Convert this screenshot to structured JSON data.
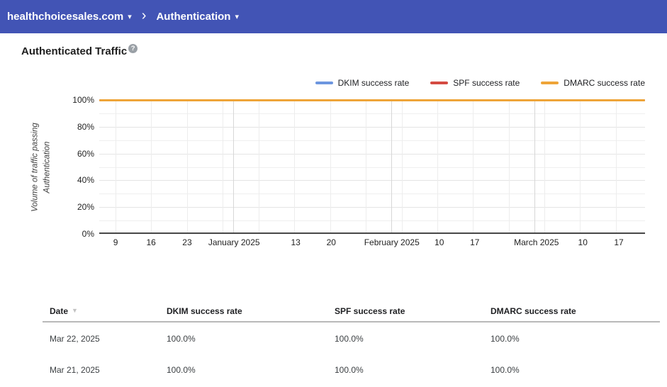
{
  "header": {
    "domain": "healthchoicesales.com",
    "section": "Authentication",
    "caret": "▾",
    "separator": "›"
  },
  "page": {
    "title": "Authenticated Traffic",
    "help_glyph": "?"
  },
  "colors": {
    "header_bg": "#4254B5",
    "dkim_blue": "#6D96DF",
    "spf_red": "#D44B42",
    "dmarc_orange": "#EEA438"
  },
  "chart_data": {
    "type": "line",
    "title": "Authenticated Traffic",
    "ylabel": "Volume of traffic passing Authentication",
    "ylabel_lines": [
      "Volume of traffic passing",
      "Authentication"
    ],
    "ylim": [
      0,
      100
    ],
    "y_unit": "%",
    "grid": true,
    "legend_position": "top-right",
    "y_ticks": [
      {
        "value": 100,
        "label": "100%"
      },
      {
        "value": 80,
        "label": "80%"
      },
      {
        "value": 60,
        "label": "60%"
      },
      {
        "value": 40,
        "label": "40%"
      },
      {
        "value": 20,
        "label": "20%"
      },
      {
        "value": 0,
        "label": "0%"
      }
    ],
    "y_minor_gridline_step": 10,
    "x_ticks": [
      {
        "label": "9",
        "pos": 0.03,
        "kind": "week"
      },
      {
        "label": "16",
        "pos": 0.095,
        "kind": "week"
      },
      {
        "label": "23",
        "pos": 0.161,
        "kind": "week"
      },
      {
        "label": "January 2025",
        "pos": 0.247,
        "kind": "month"
      },
      {
        "label": "13",
        "pos": 0.36,
        "kind": "week"
      },
      {
        "label": "20",
        "pos": 0.425,
        "kind": "week"
      },
      {
        "label": "February 2025",
        "pos": 0.536,
        "kind": "month"
      },
      {
        "label": "10",
        "pos": 0.623,
        "kind": "week"
      },
      {
        "label": "17",
        "pos": 0.688,
        "kind": "week"
      },
      {
        "label": "March 2025",
        "pos": 0.801,
        "kind": "month"
      },
      {
        "label": "10",
        "pos": 0.886,
        "kind": "week"
      },
      {
        "label": "17",
        "pos": 0.952,
        "kind": "week"
      }
    ],
    "series": [
      {
        "name": "DKIM success rate",
        "color": "#6D96DF",
        "value_percent": 100
      },
      {
        "name": "SPF success rate",
        "color": "#D44B42",
        "value_percent": 100
      },
      {
        "name": "DMARC success rate",
        "color": "#EEA438",
        "value_percent": 100
      }
    ],
    "layout": {
      "weekly_gridline_positions": [
        0.03,
        0.095,
        0.161,
        0.226,
        0.292,
        0.357,
        0.423,
        0.488,
        0.554,
        0.619,
        0.685,
        0.75,
        0.816,
        0.881,
        0.947
      ],
      "month_gridline_positions": [
        0.245,
        0.535,
        0.797
      ]
    }
  },
  "table": {
    "sort_icon": "▼",
    "columns": [
      {
        "label": "Date",
        "sort": "desc"
      },
      {
        "label": "DKIM success rate"
      },
      {
        "label": "SPF success rate"
      },
      {
        "label": "DMARC success rate"
      }
    ],
    "rows": [
      {
        "date": "Mar 22, 2025",
        "dkim": "100.0%",
        "spf": "100.0%",
        "dmarc": "100.0%"
      },
      {
        "date": "Mar 21, 2025",
        "dkim": "100.0%",
        "spf": "100.0%",
        "dmarc": "100.0%"
      }
    ]
  }
}
